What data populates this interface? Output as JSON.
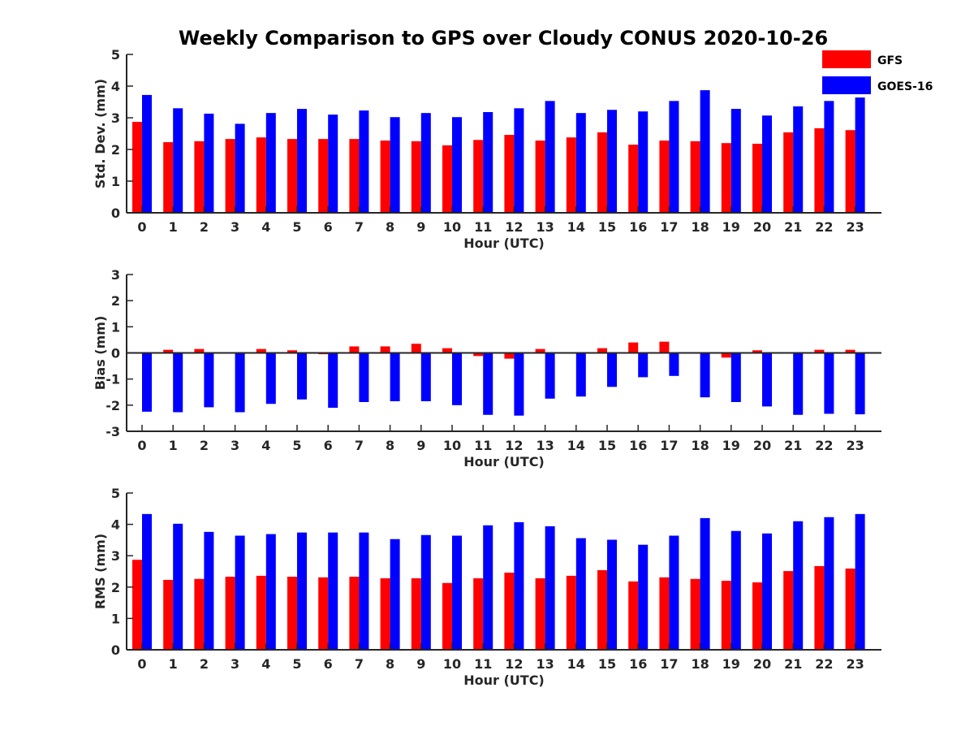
{
  "title": "Weekly Comparison to GPS over Cloudy CONUS 2020-10-26",
  "legend": [
    {
      "name": "GFS",
      "color": "#ff0000"
    },
    {
      "name": "GOES-16",
      "color": "#0000ff"
    }
  ],
  "chart_data": [
    {
      "type": "bar",
      "categories": [
        "0",
        "1",
        "2",
        "3",
        "4",
        "5",
        "6",
        "7",
        "8",
        "9",
        "10",
        "11",
        "12",
        "13",
        "14",
        "15",
        "16",
        "17",
        "18",
        "19",
        "20",
        "21",
        "22",
        "23"
      ],
      "xlabel": "Hour (UTC)",
      "ylabel": "Std. Dev. (mm)",
      "ylim": [
        0,
        5
      ],
      "yticks": [
        "0",
        "1",
        "2",
        "3",
        "4",
        "5"
      ],
      "series": [
        {
          "name": "GFS",
          "color": "#ff0000",
          "values": [
            2.87,
            2.23,
            2.26,
            2.33,
            2.38,
            2.33,
            2.33,
            2.33,
            2.28,
            2.26,
            2.13,
            2.3,
            2.46,
            2.28,
            2.38,
            2.54,
            2.15,
            2.28,
            2.26,
            2.2,
            2.18,
            2.54,
            2.67,
            2.61
          ]
        },
        {
          "name": "GOES-16",
          "color": "#0000ff",
          "values": [
            3.72,
            3.3,
            3.13,
            2.81,
            3.15,
            3.28,
            3.1,
            3.23,
            3.02,
            3.15,
            3.02,
            3.18,
            3.3,
            3.53,
            3.15,
            3.25,
            3.2,
            3.53,
            3.87,
            3.28,
            3.07,
            3.36,
            3.53,
            3.64
          ]
        }
      ]
    },
    {
      "type": "bar",
      "categories": [
        "0",
        "1",
        "2",
        "3",
        "4",
        "5",
        "6",
        "7",
        "8",
        "9",
        "10",
        "11",
        "12",
        "13",
        "14",
        "15",
        "16",
        "17",
        "18",
        "19",
        "20",
        "21",
        "22",
        "23"
      ],
      "xlabel": "Hour (UTC)",
      "ylabel": "Bias (mm)",
      "ylim": [
        -3,
        3
      ],
      "yticks": [
        "-3",
        "-2",
        "-1",
        "0",
        "1",
        "2",
        "3"
      ],
      "series": [
        {
          "name": "GFS",
          "color": "#ff0000",
          "values": [
            -0.03,
            0.12,
            0.15,
            -0.02,
            0.15,
            0.1,
            -0.05,
            0.25,
            0.25,
            0.35,
            0.18,
            -0.12,
            -0.22,
            0.15,
            0.02,
            0.18,
            0.4,
            0.43,
            0.02,
            -0.18,
            0.1,
            0.02,
            0.12,
            0.12
          ]
        },
        {
          "name": "GOES-16",
          "color": "#0000ff",
          "values": [
            -2.25,
            -2.27,
            -2.08,
            -2.27,
            -1.95,
            -1.78,
            -2.1,
            -1.88,
            -1.85,
            -1.85,
            -2.0,
            -2.37,
            -2.4,
            -1.75,
            -1.67,
            -1.3,
            -0.93,
            -0.88,
            -1.7,
            -1.88,
            -2.05,
            -2.37,
            -2.33,
            -2.35
          ]
        }
      ]
    },
    {
      "type": "bar",
      "categories": [
        "0",
        "1",
        "2",
        "3",
        "4",
        "5",
        "6",
        "7",
        "8",
        "9",
        "10",
        "11",
        "12",
        "13",
        "14",
        "15",
        "16",
        "17",
        "18",
        "19",
        "20",
        "21",
        "22",
        "23"
      ],
      "xlabel": "Hour (UTC)",
      "ylabel": "RMS (mm)",
      "ylim": [
        0,
        5
      ],
      "yticks": [
        "0",
        "1",
        "2",
        "3",
        "4",
        "5"
      ],
      "series": [
        {
          "name": "GFS",
          "color": "#ff0000",
          "values": [
            2.87,
            2.23,
            2.26,
            2.33,
            2.36,
            2.33,
            2.31,
            2.33,
            2.28,
            2.28,
            2.13,
            2.28,
            2.46,
            2.28,
            2.36,
            2.54,
            2.18,
            2.31,
            2.26,
            2.2,
            2.15,
            2.51,
            2.67,
            2.59
          ]
        },
        {
          "name": "GOES-16",
          "color": "#0000ff",
          "values": [
            4.33,
            4.02,
            3.76,
            3.64,
            3.69,
            3.74,
            3.74,
            3.74,
            3.53,
            3.66,
            3.64,
            3.97,
            4.07,
            3.94,
            3.56,
            3.51,
            3.35,
            3.64,
            4.2,
            3.79,
            3.71,
            4.1,
            4.23,
            4.33
          ]
        }
      ]
    }
  ]
}
